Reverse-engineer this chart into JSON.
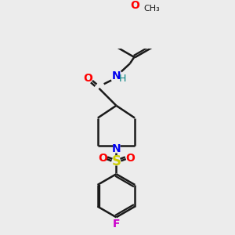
{
  "bg_color": "#ececec",
  "line_color": "#1a1a1a",
  "bond_width": 1.8,
  "atom_colors": {
    "O": "#ff0000",
    "N": "#0000ee",
    "H": "#008080",
    "S": "#cccc00",
    "F": "#cc00cc"
  },
  "font_size": 9
}
